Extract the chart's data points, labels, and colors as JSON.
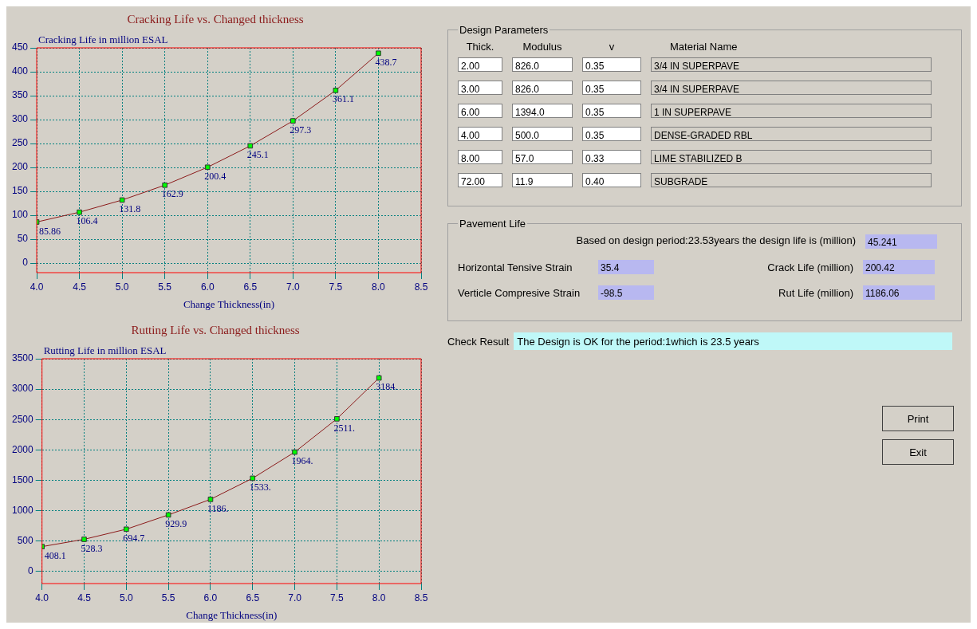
{
  "chart_data": [
    {
      "type": "line",
      "title": "Cracking Life vs. Changed thickness",
      "ylabel": "Cracking Life in million ESAL",
      "xlabel": "Change Thickness(in)",
      "x": [
        4,
        4.5,
        5,
        5.5,
        6,
        6.5,
        7,
        7.5,
        8
      ],
      "series": [
        {
          "color": "#8b1a1a",
          "colors": [
            "#00ff00",
            "#00ff00",
            "#00ff00",
            "#00ff00",
            "#00ff00",
            "#00ff00",
            "#00ff00",
            "#00ff00",
            "#00ff00"
          ],
          "values": [
            85.86,
            106.4,
            131.8,
            162.9,
            200.4,
            245.1,
            297.3,
            361.1,
            438.7
          ],
          "value_labels": [
            "85.86",
            "106.4",
            "131.8",
            "162.9",
            "200.4",
            "245.1",
            "297.3",
            "361.1",
            "438.7"
          ]
        }
      ],
      "xlim": [
        4,
        8.5
      ],
      "xticks": [
        {
          "value": 4,
          "label": "4.0"
        },
        {
          "value": 4.5,
          "label": "4.5"
        },
        {
          "value": 5,
          "label": "5.0"
        },
        {
          "value": 5.5,
          "label": "5.5"
        },
        {
          "value": 6,
          "label": "6.0"
        },
        {
          "value": 6.5,
          "label": "6.5"
        },
        {
          "value": 7,
          "label": "7.0"
        },
        {
          "value": 7.5,
          "label": "7.5"
        },
        {
          "value": 8,
          "label": "8.0"
        },
        {
          "value": 8.5,
          "label": "8.5"
        }
      ],
      "ylim": [
        -20,
        450
      ],
      "yticks": [
        0,
        50,
        100,
        150,
        200,
        250,
        300,
        350,
        400,
        450
      ],
      "grid": true,
      "marker": "square",
      "line_style": "solid"
    },
    {
      "type": "line",
      "title": "Rutting Life vs. Changed thickness",
      "ylabel": "Rutting Life in million ESAL",
      "xlabel": "Change Thickness(in)",
      "x": [
        4,
        4.5,
        5,
        5.5,
        6,
        6.5,
        7,
        7.5,
        8
      ],
      "series": [
        {
          "color": "#8b1a1a",
          "colors": [
            "#00ff00",
            "#00ff00",
            "#00ff00",
            "#00ff00",
            "#00ff00",
            "#00ff00",
            "#00ff00",
            "#00ff00",
            "#00ff00"
          ],
          "values": [
            408.1,
            528.3,
            694.7,
            929.9,
            1186,
            1533,
            1964,
            2511,
            3184
          ],
          "value_labels": [
            "408.1",
            "528.3",
            "694.7",
            "929.9",
            "1186.",
            "1533.",
            "1964.",
            "2511.",
            "3184."
          ]
        }
      ],
      "xlim": [
        4,
        8.5
      ],
      "xticks": [
        {
          "value": 4,
          "label": "4.0"
        },
        {
          "value": 4.5,
          "label": "4.5"
        },
        {
          "value": 5,
          "label": "5.0"
        },
        {
          "value": 5.5,
          "label": "5.5"
        },
        {
          "value": 6,
          "label": "6.0"
        },
        {
          "value": 6.5,
          "label": "6.5"
        },
        {
          "value": 7,
          "label": "7.0"
        },
        {
          "value": 7.5,
          "label": "7.5"
        },
        {
          "value": 8,
          "label": "8.0"
        },
        {
          "value": 8.5,
          "label": "8.5"
        }
      ],
      "ylim": [
        -200,
        3500
      ],
      "yticks": [
        0,
        500,
        1000,
        1500,
        2000,
        2500,
        3000,
        3500
      ],
      "grid": true,
      "marker": "square",
      "line_style": "solid"
    },
    {
      "type": "other",
      "title": "Design Parameters",
      "annotations": [
        "Thick.",
        "Modulus",
        "v",
        "Material Name",
        "2.00",
        "826.0",
        "0.35",
        "3/4 IN SUPERPAVE",
        "3.00",
        "826.0",
        "0.35",
        "3/4 IN SUPERPAVE",
        "6.00",
        "1394.0",
        "0.35",
        "1 IN SUPERPAVE",
        "4.00",
        "500.0",
        "0.35",
        "DENSE-GRADED RBL",
        "8.00",
        "57.0",
        "0.33",
        "LIME STABILIZED B",
        "72.00",
        "11.9",
        "0.40",
        "SUBGRADE"
      ]
    },
    {
      "type": "other",
      "title": "Pavement Life",
      "annotations": [
        "Based on design period:23.53years  the design life is (million)",
        "45.241",
        "Horizontal Tensive Strain",
        "35.4",
        "Crack  Life (million)",
        "200.42",
        "Verticle Compresive Strain",
        "-98.5",
        "Rut  Life  (million)",
        "1186.06"
      ]
    },
    {
      "type": "other",
      "annotations": [
        "Check Result",
        "The Design is OK for the period:1which is 23.5 years",
        "Print",
        "Exit"
      ]
    }
  ]
}
